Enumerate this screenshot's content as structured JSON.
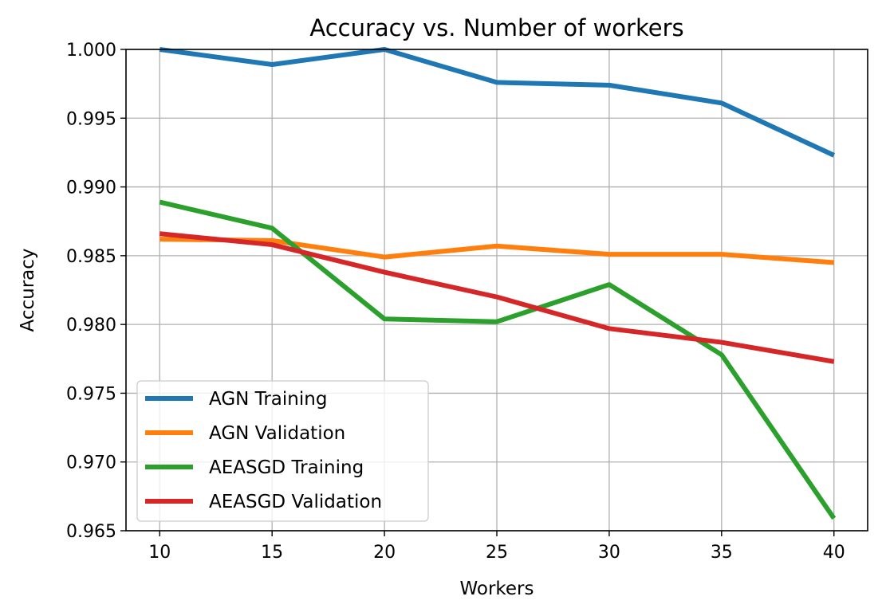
{
  "chart_data": {
    "type": "line",
    "title": "Accuracy vs. Number of workers",
    "xlabel": "Workers",
    "ylabel": "Accuracy",
    "x": [
      10,
      15,
      20,
      25,
      30,
      35,
      40
    ],
    "xticks": [
      "10",
      "15",
      "20",
      "25",
      "30",
      "35",
      "40"
    ],
    "yticks": [
      "0.965",
      "0.970",
      "0.975",
      "0.980",
      "0.985",
      "0.990",
      "0.995",
      "1.000"
    ],
    "ytick_values": [
      0.965,
      0.97,
      0.975,
      0.98,
      0.985,
      0.99,
      0.995,
      1.0
    ],
    "xlim": [
      8.5,
      41.5
    ],
    "ylim": [
      0.965,
      1.0
    ],
    "grid": true,
    "legend_position": "lower-left",
    "series": [
      {
        "name": "AGN Training",
        "color": "#1f77b4",
        "values": [
          1.0,
          0.9989,
          1.0,
          0.9976,
          0.9974,
          0.9961,
          0.9923
        ]
      },
      {
        "name": "AGN Validation",
        "color": "#ff7f0e",
        "values": [
          0.9862,
          0.9861,
          0.9849,
          0.9857,
          0.9851,
          0.9851,
          0.9845
        ]
      },
      {
        "name": "AEASGD Training",
        "color": "#2ca02c",
        "values": [
          0.9889,
          0.987,
          0.9804,
          0.9802,
          0.9829,
          0.9778,
          0.9659
        ]
      },
      {
        "name": "AEASGD Validation",
        "color": "#d62728",
        "values": [
          0.9866,
          0.9858,
          0.9838,
          0.982,
          0.9797,
          0.9787,
          0.9773
        ]
      }
    ]
  }
}
